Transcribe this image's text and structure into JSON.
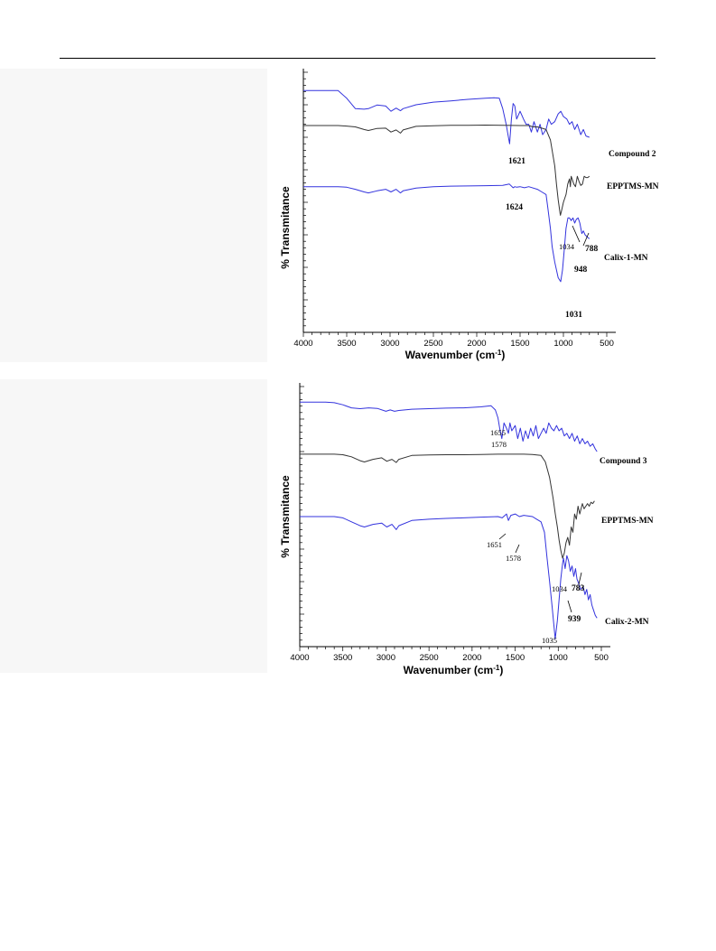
{
  "chart_data": [
    {
      "type": "line",
      "xlabel": "Wavenumber (cm",
      "xlabel_sup": "-1",
      "xlabel_close": ")",
      "ylabel": "% Transmitance",
      "xlim": [
        4000,
        500
      ],
      "x_reversed": true,
      "xticks": [
        4000,
        3500,
        3000,
        2500,
        2000,
        1500,
        1000,
        500
      ],
      "grid": false,
      "series": [
        {
          "name": "Compound 2",
          "color": "#3333dd",
          "x": [
            4000,
            3900,
            3700,
            3600,
            3500,
            3400,
            3300,
            3250,
            3150,
            3050,
            2990,
            2930,
            2880,
            2850,
            2700,
            2500,
            2300,
            2100,
            1900,
            1800,
            1740,
            1700,
            1660,
            1640,
            1621,
            1600,
            1580,
            1560,
            1540,
            1500,
            1460,
            1430,
            1400,
            1370,
            1340,
            1300,
            1270,
            1240,
            1200,
            1170,
            1140,
            1100,
            1060,
            1030,
            1000,
            960,
            930,
            900,
            870,
            840,
            800,
            770,
            740,
            700
          ],
          "y": [
            93,
            93,
            93,
            93,
            90,
            86,
            85.8,
            86,
            87.4,
            87,
            85,
            86.2,
            85.2,
            86,
            87.5,
            88.5,
            89,
            89.6,
            90,
            90.2,
            90,
            86,
            80,
            76,
            72.5,
            82,
            88,
            87,
            82,
            85,
            82,
            80,
            80,
            77,
            81,
            77,
            80,
            76,
            78,
            82,
            80,
            81,
            84,
            85,
            83,
            82,
            80,
            81,
            78,
            80,
            76,
            78,
            75.5,
            75
          ]
        },
        {
          "name": "EPPTMS-MN",
          "color": "#333333",
          "x": [
            4000,
            3900,
            3800,
            3700,
            3600,
            3500,
            3400,
            3300,
            3250,
            3150,
            3050,
            2990,
            2930,
            2880,
            2850,
            2700,
            2500,
            2300,
            2100,
            1900,
            1700,
            1500,
            1400,
            1350,
            1300,
            1250,
            1200,
            1150,
            1100,
            1080,
            1060,
            1040,
            1034,
            1020,
            1000,
            970,
            950,
            930,
            920,
            910,
            900,
            880,
            860,
            840,
            820,
            800,
            780,
            760,
            740,
            720,
            700
          ],
          "y": [
            79.5,
            79.5,
            79.5,
            79.5,
            79.5,
            79.3,
            79,
            78,
            77.6,
            78.4,
            78.5,
            77,
            77.8,
            76.6,
            77.8,
            79.2,
            79.4,
            79.6,
            79.6,
            79.7,
            79.6,
            79.5,
            79.5,
            79,
            79,
            78.5,
            78,
            74,
            64,
            57,
            51,
            46,
            45,
            47,
            50,
            53,
            57,
            59,
            56,
            60,
            59,
            57,
            56,
            60,
            58,
            56.5,
            57,
            60,
            59.5,
            59.5,
            60
          ]
        },
        {
          "name": "Calix-1-MN",
          "color": "#3333dd",
          "x": [
            4000,
            3900,
            3800,
            3700,
            3600,
            3500,
            3400,
            3300,
            3250,
            3150,
            3050,
            2990,
            2930,
            2880,
            2850,
            2700,
            2500,
            2300,
            2100,
            1900,
            1700,
            1624,
            1580,
            1560,
            1540,
            1500,
            1450,
            1400,
            1300,
            1250,
            1200,
            1180,
            1150,
            1130,
            1100,
            1060,
            1031,
            1010,
            990,
            970,
            948,
            930,
            910,
            890,
            870,
            850,
            830,
            810,
            788,
            770,
            750,
            720,
            700
          ],
          "y": [
            56,
            56,
            56,
            56,
            56,
            55.8,
            55,
            54,
            53.6,
            54.4,
            55,
            54,
            55,
            53.6,
            54.4,
            55.5,
            56,
            56.2,
            56.3,
            56.4,
            56.5,
            57,
            55.6,
            56,
            55.8,
            56,
            55.6,
            56,
            55,
            54,
            53,
            48,
            40,
            33,
            27,
            21,
            19.5,
            24,
            32,
            40,
            44,
            44,
            43,
            44,
            42,
            43.5,
            44,
            42,
            38,
            39,
            37.5,
            36.5,
            36
          ]
        }
      ],
      "series_labels": [
        "Compound 2",
        "EPPTMS-MN",
        "Calix-1-MN"
      ],
      "annotations": [
        "1621",
        "1624",
        "1034",
        "788",
        "948",
        "1031"
      ]
    },
    {
      "type": "line",
      "xlabel": "Wavenumber (cm",
      "xlabel_sup": "-1",
      "xlabel_close": ")",
      "ylabel": "% Transmitance",
      "xlim": [
        4000,
        500
      ],
      "x_reversed": true,
      "xticks": [
        4000,
        3500,
        3000,
        2500,
        2000,
        1500,
        1000,
        500
      ],
      "grid": false,
      "series": [
        {
          "name": "Compound 3",
          "color": "#3333dd",
          "x": [
            4000,
            3900,
            3800,
            3700,
            3600,
            3500,
            3400,
            3300,
            3200,
            3100,
            3000,
            2950,
            2900,
            2850,
            2700,
            2500,
            2300,
            2100,
            1900,
            1780,
            1730,
            1700,
            1680,
            1655,
            1630,
            1600,
            1578,
            1560,
            1540,
            1500,
            1470,
            1440,
            1410,
            1380,
            1350,
            1320,
            1290,
            1260,
            1230,
            1200,
            1170,
            1140,
            1110,
            1080,
            1050,
            1020,
            990,
            960,
            930,
            900,
            870,
            840,
            810,
            780,
            750,
            720,
            690,
            660,
            630,
            600,
            570,
            550
          ],
          "y": [
            94,
            94,
            94,
            94,
            93.8,
            93,
            91.8,
            91.5,
            91.8,
            91.6,
            90.5,
            91,
            90.5,
            90.8,
            91.3,
            91.5,
            91.7,
            91.8,
            92.2,
            92.6,
            91,
            88,
            84,
            80,
            86,
            84,
            82,
            86,
            83,
            85,
            80,
            84,
            79,
            83,
            80,
            84,
            81,
            85,
            80,
            82,
            84,
            82,
            86,
            84,
            83,
            85,
            83,
            84,
            81,
            82,
            80,
            82,
            79,
            81,
            78,
            80,
            78,
            79,
            77,
            78,
            76,
            75
          ]
        },
        {
          "name": "EPPTMS-MN",
          "color": "#333333",
          "x": [
            4000,
            3900,
            3800,
            3700,
            3600,
            3500,
            3400,
            3300,
            3250,
            3150,
            3050,
            2990,
            2930,
            2880,
            2850,
            2700,
            2500,
            2300,
            2100,
            1900,
            1700,
            1500,
            1400,
            1300,
            1200,
            1150,
            1100,
            1060,
            1034,
            1010,
            990,
            970,
            950,
            930,
            910,
            890,
            870,
            850,
            830,
            810,
            790,
            770,
            750,
            720,
            700,
            680,
            660,
            640,
            620,
            600,
            580
          ],
          "y": [
            74,
            74,
            74,
            74,
            74,
            73.8,
            73,
            71.5,
            71,
            72,
            72.6,
            71.3,
            72,
            70.8,
            72,
            73.5,
            73.7,
            73.8,
            73.8,
            73.9,
            74,
            74,
            74,
            73.9,
            73.5,
            71,
            65,
            57,
            51,
            46,
            41,
            37,
            34,
            36,
            40,
            42,
            39,
            46,
            44,
            51,
            49,
            54,
            51,
            55,
            53,
            54,
            55,
            54,
            55.5,
            55,
            56
          ]
        },
        {
          "name": "Calix-2-MN",
          "color": "#3333dd",
          "x": [
            4000,
            3900,
            3800,
            3700,
            3600,
            3500,
            3400,
            3300,
            3250,
            3150,
            3050,
            2990,
            2930,
            2880,
            2850,
            2700,
            2500,
            2300,
            2100,
            1900,
            1700,
            1651,
            1600,
            1578,
            1550,
            1500,
            1450,
            1400,
            1300,
            1250,
            1200,
            1160,
            1130,
            1100,
            1070,
            1035,
            1010,
            990,
            970,
            950,
            939,
            920,
            900,
            880,
            860,
            840,
            820,
            800,
            783,
            760,
            740,
            710,
            690,
            670,
            650,
            630,
            610,
            590,
            570,
            550
          ],
          "y": [
            50,
            50,
            50,
            50,
            50,
            49.5,
            48,
            46.5,
            46,
            47,
            47.5,
            46,
            47,
            45,
            46.5,
            48.5,
            49,
            49.3,
            49.5,
            49.8,
            50,
            49.5,
            51,
            48.5,
            50.5,
            51,
            50,
            50.5,
            50,
            49,
            48,
            44,
            34,
            25,
            15,
            3,
            10,
            18,
            26,
            32,
            34,
            30,
            35,
            33,
            29,
            31,
            27,
            30,
            26,
            24,
            22,
            23,
            20,
            22,
            18,
            20,
            16,
            14,
            12,
            11
          ]
        }
      ],
      "series_labels": [
        "Compound 3",
        "EPPTMS-MN",
        "Calix-2-MN"
      ],
      "annotations": [
        "1655",
        "1578",
        "1651",
        "1578",
        "1034",
        "783",
        "939",
        "1035"
      ]
    }
  ]
}
